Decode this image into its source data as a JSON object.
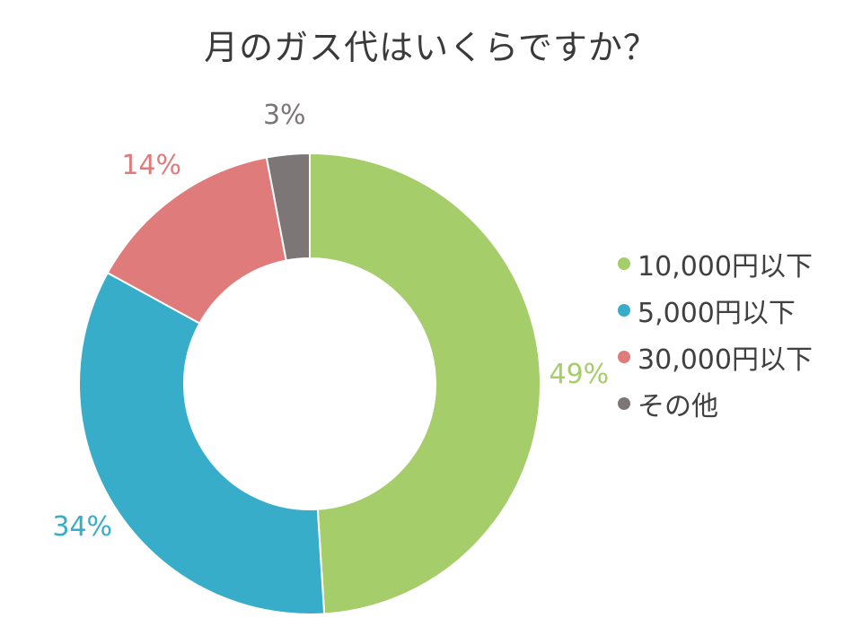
{
  "chart_data": {
    "type": "pie",
    "title": "月のガス代はいくらですか？",
    "donut": true,
    "legend_position": "right",
    "series": [
      {
        "name": "10,000円以下",
        "value": 49,
        "label": "49%",
        "color": "#a5cd6a"
      },
      {
        "name": "5,000円以下",
        "value": 34,
        "label": "34%",
        "color": "#37adc9"
      },
      {
        "name": "30,000円以下",
        "value": 14,
        "label": "14%",
        "color": "#e07b7b"
      },
      {
        "name": "その他",
        "value": 3,
        "label": "3%",
        "color": "#7d7676"
      }
    ]
  }
}
